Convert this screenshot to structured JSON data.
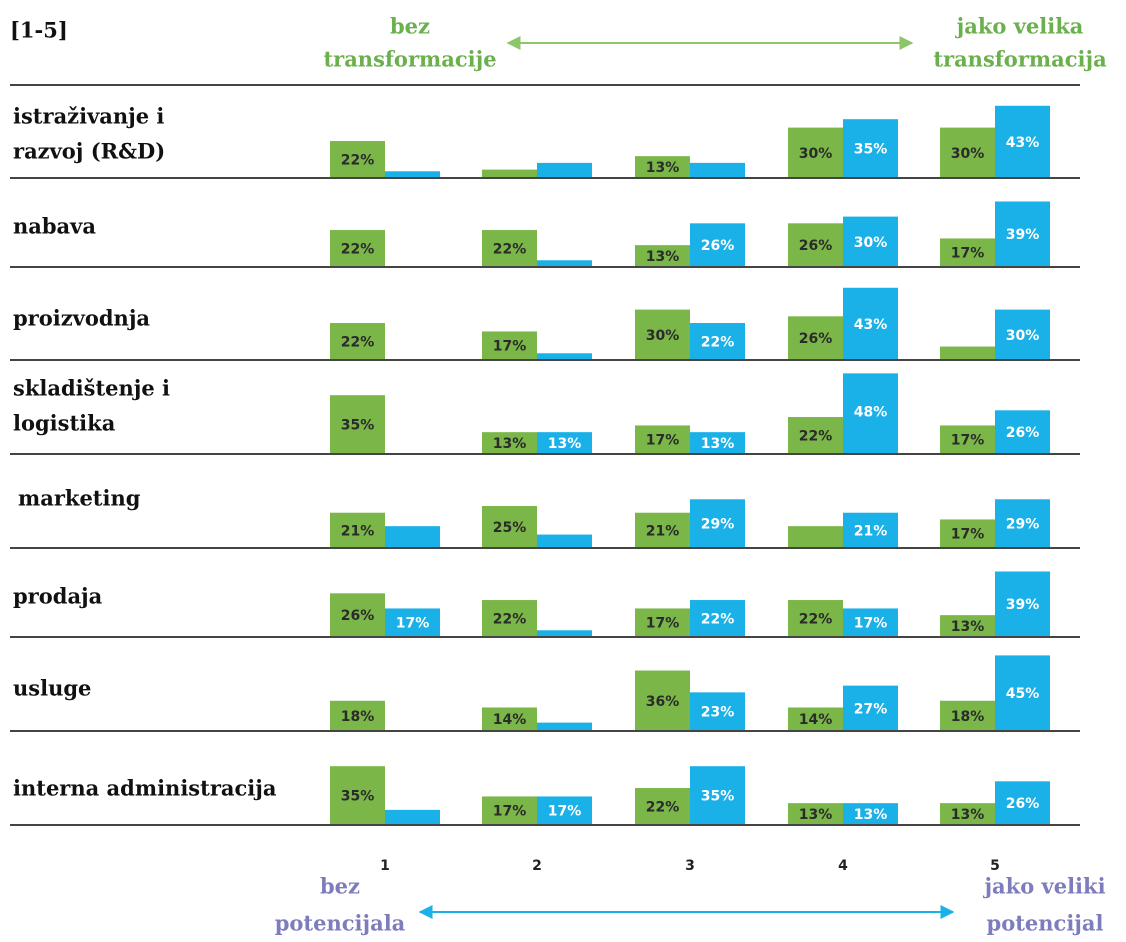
{
  "chart_data": {
    "type": "bar",
    "title": "[1-5]",
    "categories": [
      "1",
      "2",
      "3",
      "4",
      "5"
    ],
    "ylim": [
      0,
      50
    ],
    "top_scale": {
      "left": [
        "bez",
        "transformacije"
      ],
      "right": [
        "jako velika",
        "transformacija"
      ]
    },
    "bottom_scale": {
      "left": [
        "bez",
        "potencijala"
      ],
      "right": [
        "jako veliki",
        "potencijal"
      ]
    },
    "panels": [
      {
        "title": [
          "istraživanje i",
          "razvoj (R&D)"
        ],
        "series": [
          {
            "color": "#7ab648",
            "values": [
              22,
              5,
              13,
              30,
              30
            ],
            "value_labels": [
              "22%",
              null,
              "13%",
              "30%",
              "30%"
            ]
          },
          {
            "color": "#1ab0e8",
            "values": [
              4,
              9,
              9,
              35,
              43
            ],
            "value_labels": [
              null,
              null,
              null,
              "35%",
              "43%"
            ]
          }
        ]
      },
      {
        "title": [
          "nabava"
        ],
        "series": [
          {
            "color": "#7ab648",
            "values": [
              22,
              22,
              13,
              26,
              17
            ],
            "value_labels": [
              "22%",
              "22%",
              "13%",
              "26%",
              "17%"
            ]
          },
          {
            "color": "#1ab0e8",
            "values": [
              0,
              4,
              26,
              30,
              39
            ],
            "value_labels": [
              null,
              null,
              "26%",
              "30%",
              "39%"
            ]
          }
        ]
      },
      {
        "title": [
          "proizvodnja"
        ],
        "series": [
          {
            "color": "#7ab648",
            "values": [
              22,
              17,
              30,
              26,
              8
            ],
            "value_labels": [
              "22%",
              "17%",
              "30%",
              "26%",
              null
            ]
          },
          {
            "color": "#1ab0e8",
            "values": [
              0,
              4,
              22,
              43,
              30
            ],
            "value_labels": [
              null,
              null,
              "22%",
              "43%",
              "30%"
            ]
          }
        ]
      },
      {
        "title": [
          "skladištenje i",
          "logistika"
        ],
        "series": [
          {
            "color": "#7ab648",
            "values": [
              35,
              13,
              17,
              22,
              17
            ],
            "value_labels": [
              "35%",
              "13%",
              "17%",
              "22%",
              "17%"
            ]
          },
          {
            "color": "#1ab0e8",
            "values": [
              0,
              13,
              13,
              48,
              26
            ],
            "value_labels": [
              null,
              "13%",
              "13%",
              "48%",
              "26%"
            ]
          }
        ]
      },
      {
        "title": [
          "marketing"
        ],
        "series": [
          {
            "color": "#7ab648",
            "values": [
              21,
              25,
              21,
              13,
              17
            ],
            "value_labels": [
              "21%",
              "25%",
              "21%",
              null,
              "17%"
            ]
          },
          {
            "color": "#1ab0e8",
            "values": [
              13,
              8,
              29,
              21,
              29
            ],
            "value_labels": [
              null,
              null,
              "29%",
              "21%",
              "29%"
            ]
          }
        ]
      },
      {
        "title": [
          "prodaja"
        ],
        "series": [
          {
            "color": "#7ab648",
            "values": [
              26,
              22,
              17,
              22,
              13
            ],
            "value_labels": [
              "26%",
              "22%",
              "17%",
              "22%",
              "13%"
            ]
          },
          {
            "color": "#1ab0e8",
            "values": [
              17,
              4,
              22,
              17,
              39
            ],
            "value_labels": [
              "17%",
              null,
              "22%",
              "17%",
              "39%"
            ]
          }
        ]
      },
      {
        "title": [
          "usluge"
        ],
        "series": [
          {
            "color": "#7ab648",
            "values": [
              18,
              14,
              36,
              14,
              18
            ],
            "value_labels": [
              "18%",
              "14%",
              "36%",
              "14%",
              "18%"
            ]
          },
          {
            "color": "#1ab0e8",
            "values": [
              0,
              5,
              23,
              27,
              45
            ],
            "value_labels": [
              null,
              null,
              "23%",
              "27%",
              "45%"
            ]
          }
        ]
      },
      {
        "title": [
          "interna administracija"
        ],
        "series": [
          {
            "color": "#7ab648",
            "values": [
              35,
              17,
              22,
              13,
              13
            ],
            "value_labels": [
              "35%",
              "17%",
              "22%",
              "13%",
              "13%"
            ]
          },
          {
            "color": "#1ab0e8",
            "values": [
              9,
              17,
              35,
              13,
              26
            ],
            "value_labels": [
              null,
              "17%",
              "35%",
              "13%",
              "26%"
            ]
          }
        ]
      }
    ]
  }
}
